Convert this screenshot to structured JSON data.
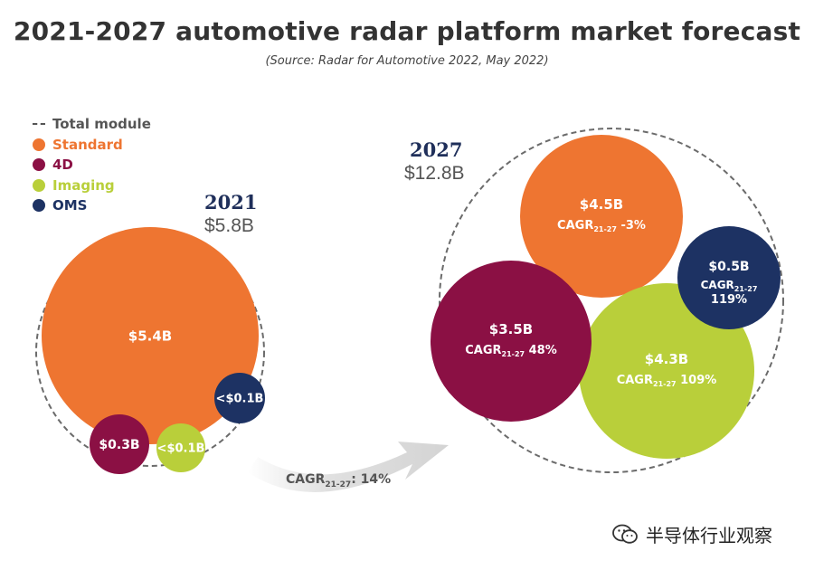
{
  "chart_data": {
    "type": "bubble",
    "title": "2021-2027 automotive radar platform market forecast",
    "subtitle": "(Source: Radar for Automotive 2022, May 2022)",
    "legend": [
      {
        "name": "Total module",
        "marker": "dashed-line",
        "color": "#555555"
      },
      {
        "name": "Standard",
        "marker": "dot",
        "color": "#ee7531"
      },
      {
        "name": "4D",
        "marker": "dot",
        "color": "#8b1044"
      },
      {
        "name": "Imaging",
        "marker": "dot",
        "color": "#b9cf3a"
      },
      {
        "name": "OMS",
        "marker": "dot",
        "color": "#1d3263"
      }
    ],
    "legend_colors": {
      "Total module": "#555555",
      "Standard": "#ee7531",
      "4D": "#8b1044",
      "Imaging": "#b9cf3a",
      "OMS": "#1d3263"
    },
    "groups": [
      {
        "year": "2021",
        "total_label": "$5.8B",
        "total_value": 5.8,
        "segments": [
          {
            "name": "Standard",
            "value": 5.4,
            "label": "$5.4B"
          },
          {
            "name": "4D",
            "value": 0.3,
            "label": "$0.3B"
          },
          {
            "name": "Imaging",
            "value": 0.05,
            "label": "<$0.1B"
          },
          {
            "name": "OMS",
            "value": 0.05,
            "label": "<$0.1B"
          }
        ]
      },
      {
        "year": "2027",
        "total_label": "$12.8B",
        "total_value": 12.8,
        "segments": [
          {
            "name": "Standard",
            "value": 4.5,
            "label": "$4.5B",
            "cagr_value": "-3%"
          },
          {
            "name": "4D",
            "value": 3.5,
            "label": "$3.5B",
            "cagr_value": "48%"
          },
          {
            "name": "Imaging",
            "value": 4.3,
            "label": "$4.3B",
            "cagr_value": "109%"
          },
          {
            "name": "OMS",
            "value": 0.5,
            "label": "$0.5B",
            "cagr_value": "119%"
          }
        ]
      }
    ],
    "cagr_prefix": "CAGR",
    "cagr_sub": "21-27",
    "overall_cagr": {
      "label": "CAGR",
      "sub": "21-27",
      "value": "14%"
    },
    "arrow_color": "#d9d9d9"
  },
  "watermark": {
    "text": "半导体行业观察",
    "icon": "wechat-icon"
  }
}
